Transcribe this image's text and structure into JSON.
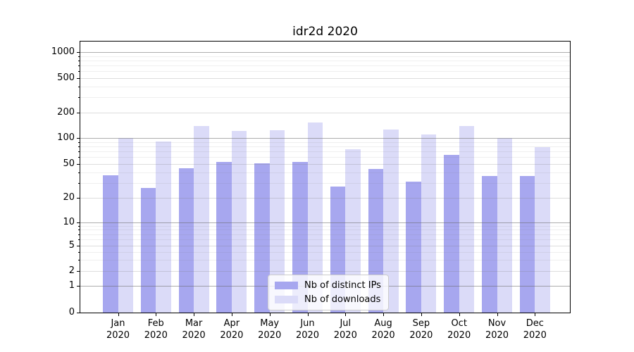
{
  "chart_data": {
    "type": "bar",
    "title": "idr2d 2020",
    "year": "2020",
    "months": [
      "Jan",
      "Feb",
      "Mar",
      "Apr",
      "May",
      "Jun",
      "Jul",
      "Aug",
      "Sep",
      "Oct",
      "Nov",
      "Dec"
    ],
    "categories": [
      "Jan 2020",
      "Feb 2020",
      "Mar 2020",
      "Apr 2020",
      "May 2020",
      "Jun 2020",
      "Jul 2020",
      "Aug 2020",
      "Sep 2020",
      "Oct 2020",
      "Nov 2020",
      "Dec 2020"
    ],
    "series": [
      {
        "name": "Nb of distinct IPs",
        "color": "#a7a7ef",
        "values": [
          37,
          26,
          45,
          53,
          51,
          53,
          27,
          44,
          31,
          64,
          36,
          36
        ]
      },
      {
        "name": "Nb of downloads",
        "color": "#dbdbf8",
        "values": [
          100,
          91,
          138,
          122,
          123,
          154,
          74,
          126,
          110,
          138,
          100,
          78
        ]
      }
    ],
    "y_ticks": [
      0,
      1,
      2,
      5,
      10,
      20,
      50,
      100,
      200,
      500,
      1000
    ],
    "y_scale": "symlog-like (log above 1, compressed linear region 0-1)",
    "ylim": [
      0,
      1400
    ],
    "grid": true,
    "legend": {
      "position": "bottom-center",
      "items": [
        "Nb of distinct IPs",
        "Nb of downloads"
      ]
    },
    "colors": {
      "axis": "#000000",
      "grid_major": "#b0b0b0",
      "grid_minor": "#ededed",
      "legend_border": "#cccccc",
      "background": "#ffffff"
    }
  }
}
